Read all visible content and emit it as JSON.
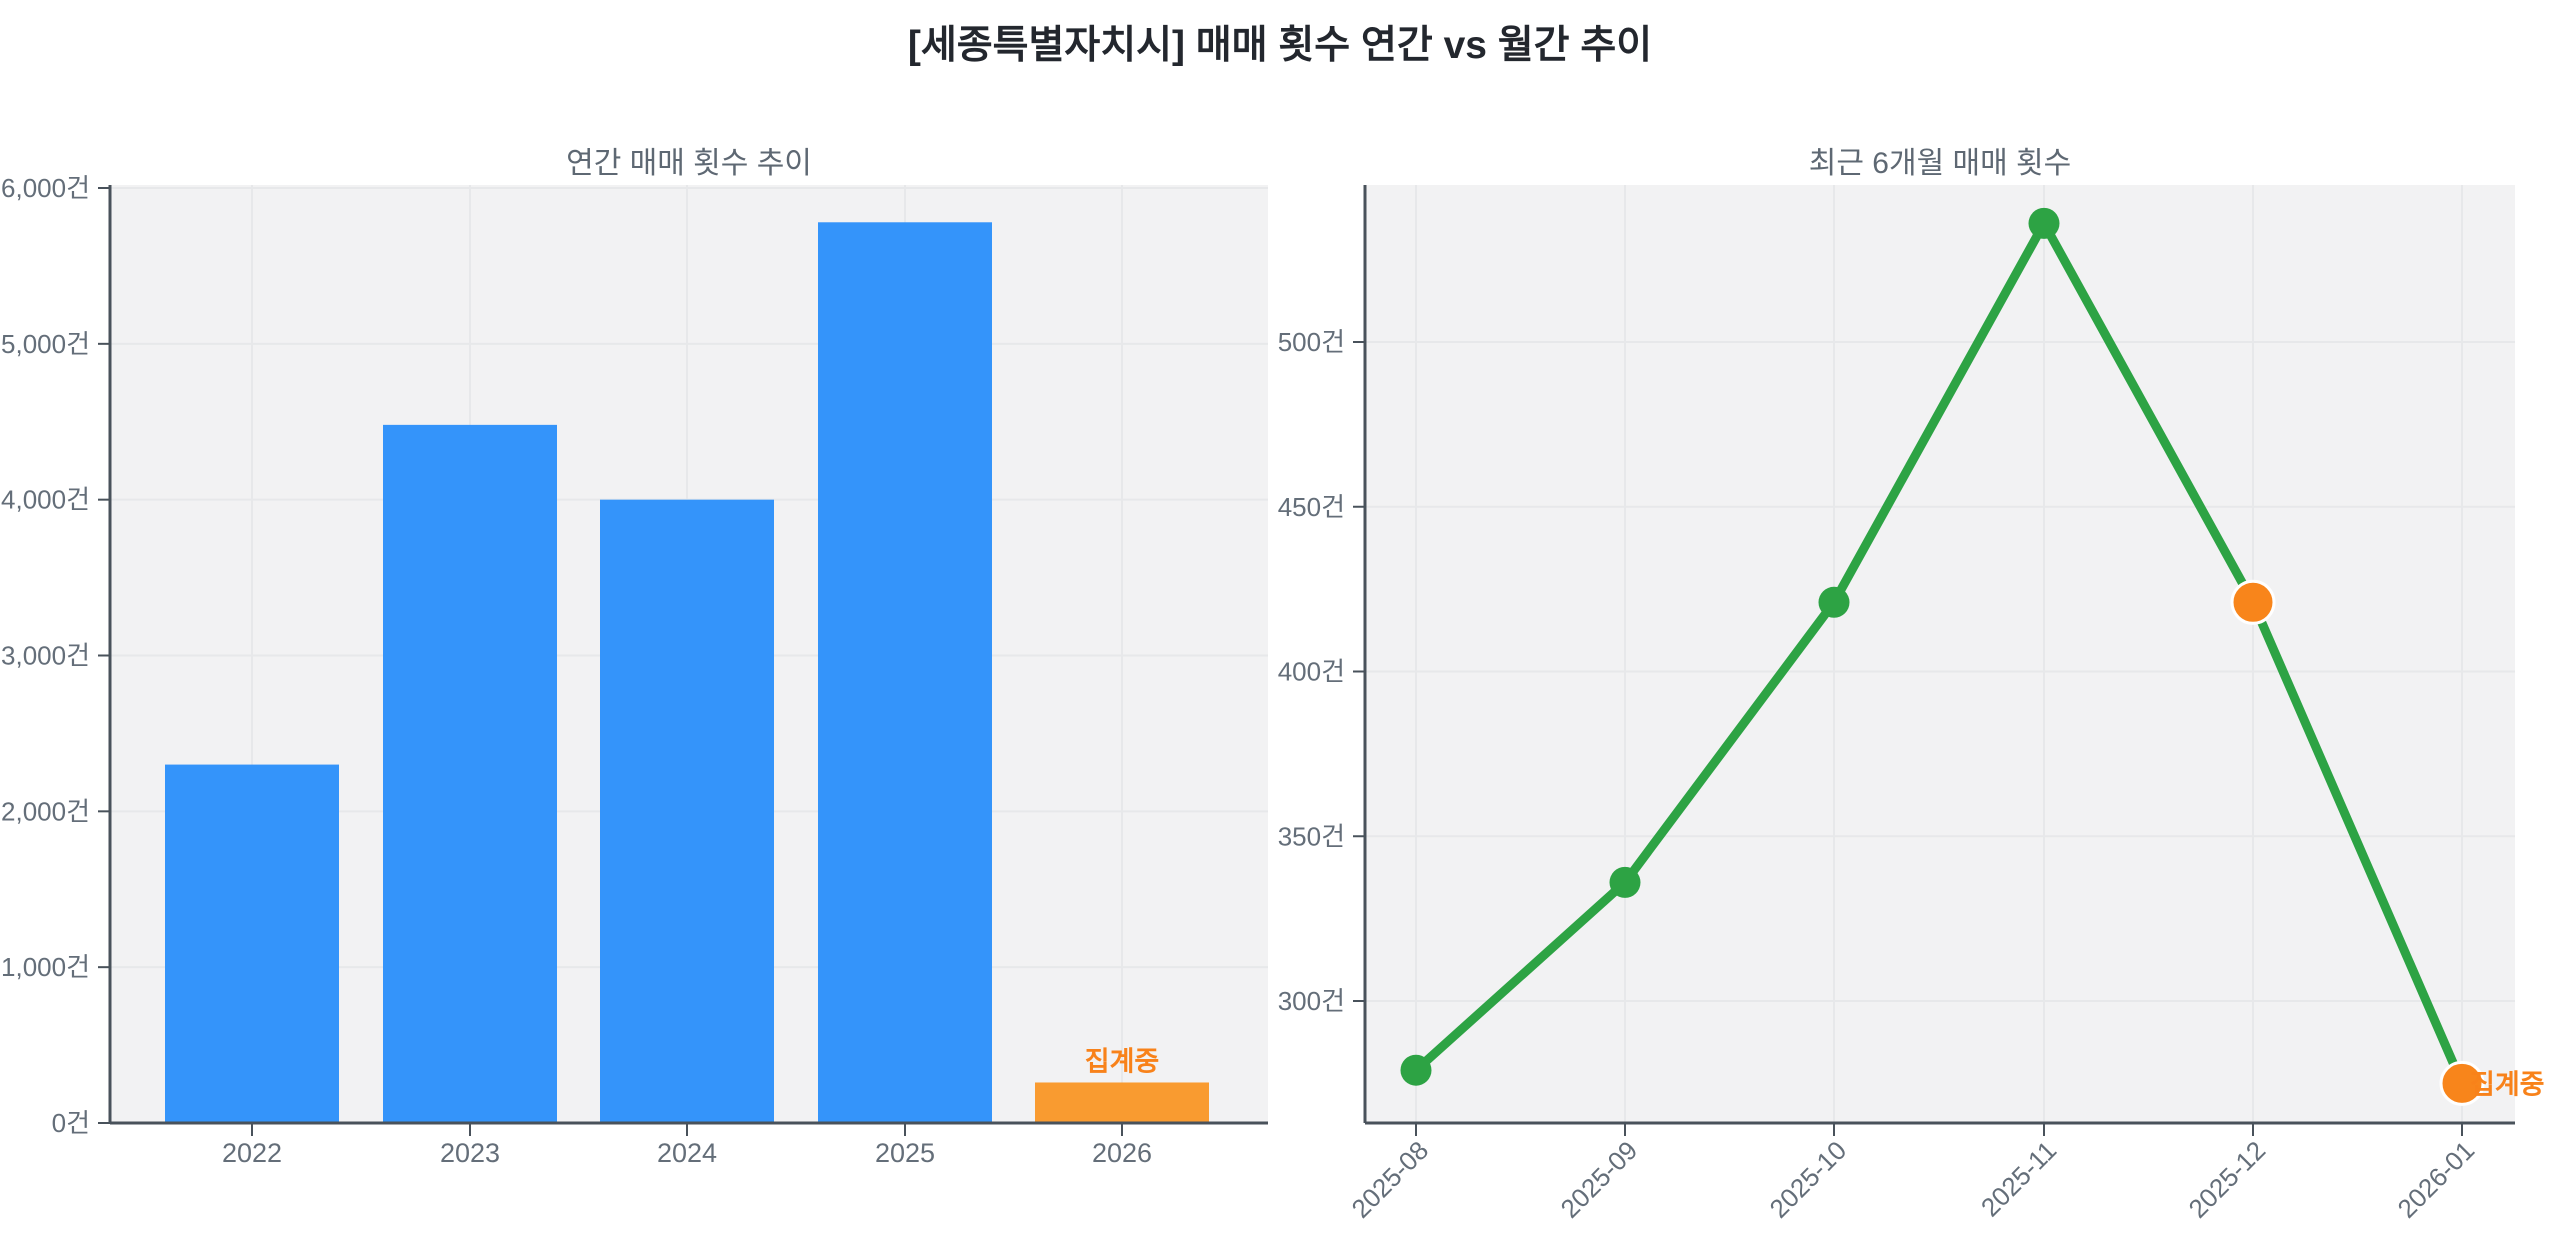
{
  "figure": {
    "title": "[세종특별자치시] 매매 횟수 연간 vs 월간 추이"
  },
  "colors": {
    "background": "#FFFFFF",
    "plot_bg": "#F2F2F3",
    "grid": "#E7E8EA",
    "axis": "#49525B",
    "tick_label": "#646E79",
    "subtitle": "#5E6873",
    "title": "#23272E",
    "pending_text": "#F8821A"
  },
  "chart_data": [
    {
      "type": "bar",
      "title": "연간 매매 횟수 추이",
      "categories": [
        "2022",
        "2023",
        "2024",
        "2025",
        "2026"
      ],
      "values": [
        2300,
        4480,
        4000,
        5780,
        260
      ],
      "unit": "건",
      "yticks": [
        0,
        1000,
        2000,
        3000,
        4000,
        5000,
        6000
      ],
      "ytick_labels": [
        "0건",
        "1,000건",
        "2,000건",
        "3,000건",
        "4,000건",
        "5,000건",
        "6,000건"
      ],
      "ylim": [
        0,
        6020
      ],
      "xlabel": "",
      "ylabel": "",
      "grid": true,
      "legend": "none",
      "bar_color": "#3494FA",
      "pending_index": 4,
      "pending_bar_color": "#F99B30",
      "pending_label": "집계중"
    },
    {
      "type": "line",
      "title": "최근 6개월 매매 횟수",
      "x": [
        "2025-08",
        "2025-09",
        "2025-10",
        "2025-11",
        "2025-12",
        "2026-01"
      ],
      "values": [
        279,
        336,
        421,
        536,
        421,
        275
      ],
      "unit": "건",
      "yticks": [
        300,
        350,
        400,
        450,
        500
      ],
      "ytick_labels": [
        "300건",
        "350건",
        "400건",
        "450건",
        "500건"
      ],
      "ylim": [
        263,
        547
      ],
      "grid": true,
      "legend": "none",
      "line_color": "#2DA344",
      "marker_color": "#2DA344",
      "pending_indices": [
        4,
        5
      ],
      "pending_marker_color": "#F8851B",
      "pending_label": "집계중"
    }
  ]
}
